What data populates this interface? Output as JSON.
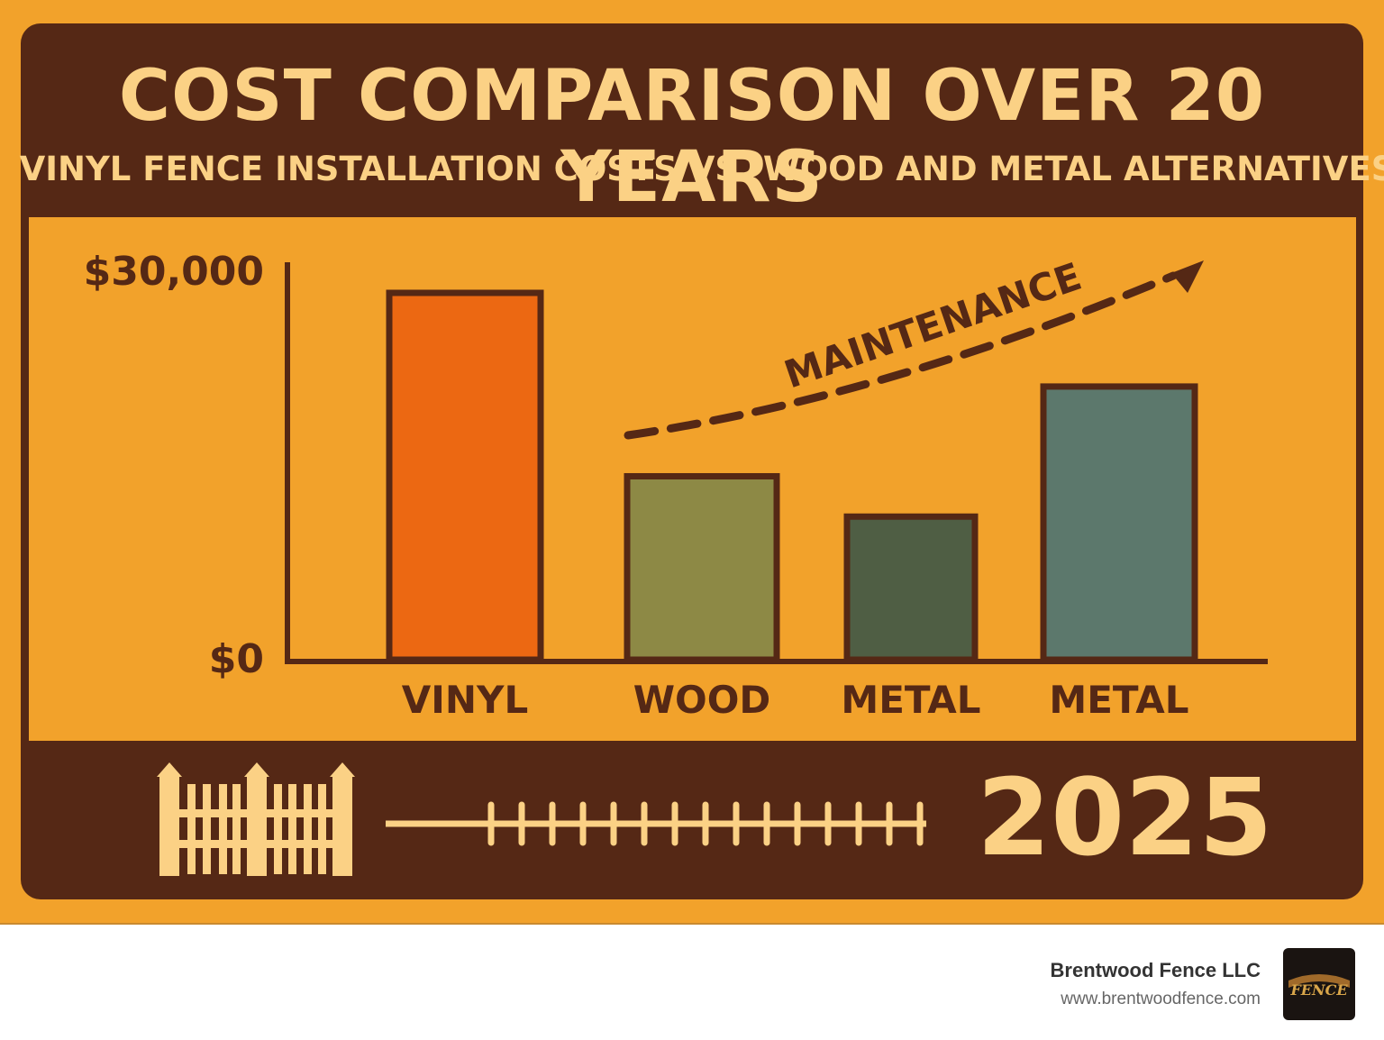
{
  "chart_data": {
    "type": "bar",
    "title": "COST COMPARISON OVER 20 YEARS",
    "subtitle": "VINYL FENCE INSTALLATION COSTS VS. WOOD AND METAL ALTERNATIVES",
    "categories": [
      "VINYL",
      "WOOD",
      "METAL",
      "METAL"
    ],
    "values": [
      28200,
      14100,
      11000,
      21000
    ],
    "bar_colors": [
      "#ec6812",
      "#8d8945",
      "#4f5e44",
      "#5c786c"
    ],
    "ylim": [
      0,
      30000
    ],
    "y_tick_labels": [
      "$30,000",
      "$0"
    ],
    "annotation": "MAINTENANCE",
    "year_label": "2025",
    "grid": false
  },
  "branding": {
    "company": "Brentwood Fence LLC",
    "url": "www.brentwoodfence.com",
    "logo_icon": "fence-logo-icon"
  },
  "colors": {
    "dark_brown": "#552815",
    "orange_bg": "#f2a22b",
    "cream_text": "#fbd185"
  }
}
